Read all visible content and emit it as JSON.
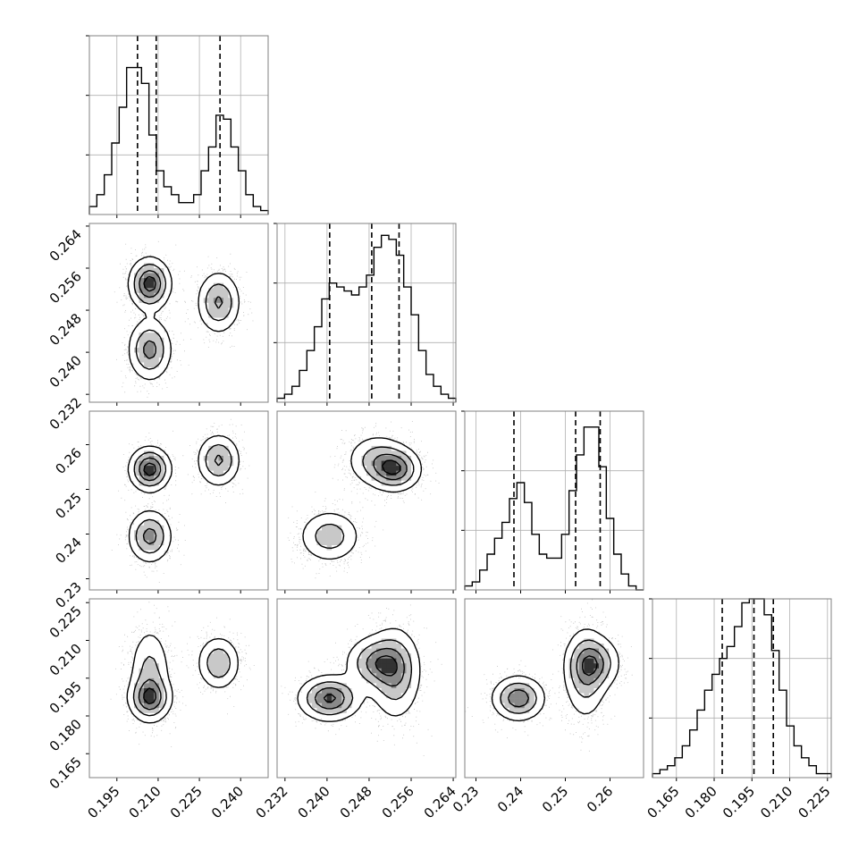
{
  "chart_data": {
    "type": "corner",
    "grid": true,
    "colors": {
      "line": "#000000",
      "grid": "#b0b0b0",
      "frame": "#808080",
      "scatter": "#555555"
    },
    "dims": [
      {
        "range": [
          0.185,
          0.25
        ],
        "ticks": [
          "0.195",
          "0.210",
          "0.225",
          "0.240"
        ],
        "quantiles": [
          0.2025,
          0.2093,
          0.2325
        ]
      },
      {
        "range": [
          0.2305,
          0.2645
        ],
        "ticks": [
          "0.232",
          "0.240",
          "0.248",
          "0.256",
          "0.264"
        ],
        "quantiles": [
          0.2405,
          0.2485,
          0.2537
        ]
      },
      {
        "range": [
          0.2275,
          0.2675
        ],
        "ticks": [
          "0.23",
          "0.24",
          "0.25",
          "0.26"
        ],
        "quantiles": [
          0.2385,
          0.2523,
          0.2578
        ]
      },
      {
        "range": [
          0.1555,
          0.2265
        ],
        "ticks": [
          "0.165",
          "0.180",
          "0.195",
          "0.210",
          "0.225"
        ],
        "quantiles": [
          0.1832,
          0.1958,
          0.2035
        ]
      }
    ],
    "histograms": [
      [
        2,
        5,
        10,
        18,
        27,
        37,
        37,
        33,
        20,
        11,
        7,
        5,
        3,
        3,
        5,
        11,
        17,
        25,
        24,
        17,
        11,
        5,
        2,
        1
      ],
      [
        1,
        2,
        4,
        8,
        13,
        19,
        26,
        30,
        29,
        28,
        27,
        29,
        32,
        39,
        42,
        41,
        37,
        29,
        22,
        13,
        7,
        4,
        2,
        1
      ],
      [
        1,
        2,
        5,
        9,
        13,
        17,
        23,
        27,
        22,
        14,
        9,
        8,
        8,
        14,
        25,
        34,
        41,
        41,
        31,
        18,
        9,
        4,
        1,
        0
      ],
      [
        1,
        2,
        3,
        5,
        8,
        12,
        17,
        22,
        26,
        30,
        33,
        38,
        44,
        45,
        45,
        41,
        32,
        22,
        13,
        8,
        5,
        3,
        1,
        1
      ]
    ],
    "histogram_ylim": [
      0,
      45
    ],
    "histogram_yticks": [
      15,
      30,
      45
    ],
    "modes": [
      {
        "weight": 0.37,
        "mean": [
          0.207,
          0.253,
          0.2545,
          0.197
        ],
        "sd": [
          0.0038,
          0.0025,
          0.0025,
          0.0095
        ]
      },
      {
        "weight": 0.33,
        "mean": [
          0.207,
          0.2405,
          0.2395,
          0.187
        ],
        "sd": [
          0.004,
          0.003,
          0.003,
          0.0045
        ]
      },
      {
        "weight": 0.3,
        "mean": [
          0.232,
          0.2495,
          0.2565,
          0.201
        ],
        "sd": [
          0.004,
          0.003,
          0.003,
          0.0055
        ]
      }
    ]
  }
}
